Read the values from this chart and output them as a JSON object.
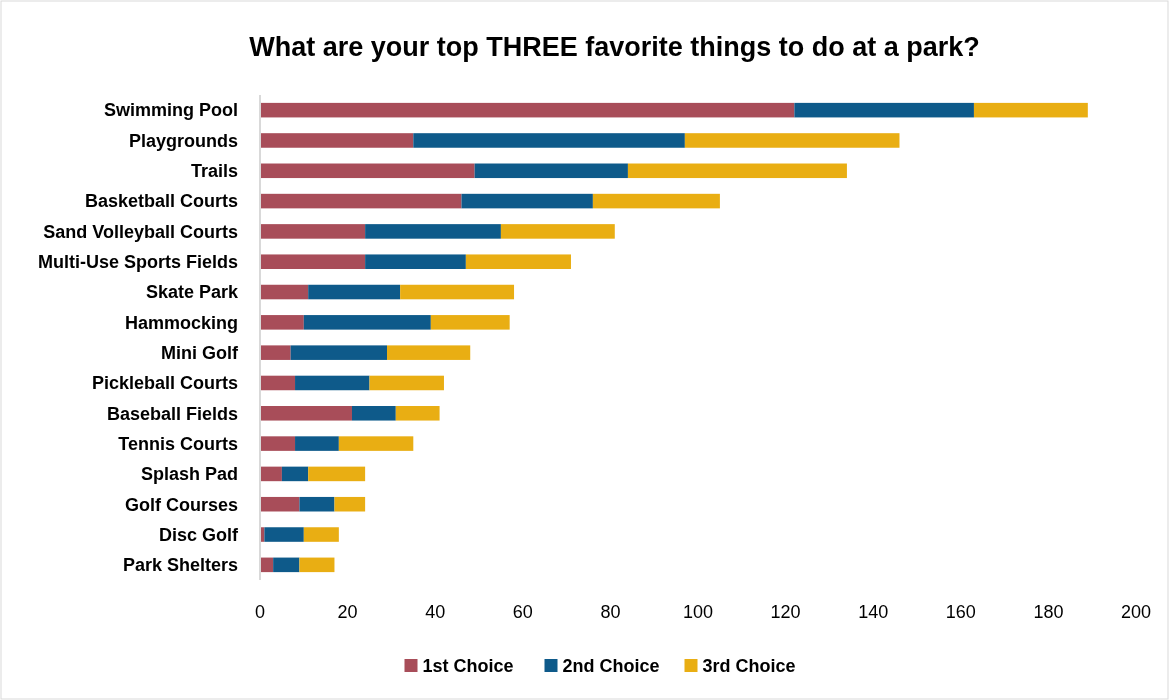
{
  "chart_data": {
    "type": "bar",
    "orientation": "horizontal",
    "stacked": true,
    "title": "What are your top THREE favorite things to do at a park?",
    "categories": [
      "Swimming Pool",
      "Playgrounds",
      "Trails",
      "Basketball Courts",
      "Sand Volleyball Courts",
      "Multi-Use Sports Fields",
      "Skate Park",
      "Hammocking",
      "Mini Golf",
      "Pickleball Courts",
      "Baseball Fields",
      "Tennis Courts",
      "Splash Pad",
      "Golf Courses",
      "Disc Golf",
      "Park Shelters"
    ],
    "series": [
      {
        "name": "1st Choice",
        "color": "#a84d59",
        "values": [
          122,
          35,
          49,
          46,
          24,
          24,
          11,
          10,
          7,
          8,
          21,
          8,
          5,
          9,
          1,
          3
        ]
      },
      {
        "name": "2nd Choice",
        "color": "#0e5a8a",
        "values": [
          41,
          62,
          35,
          30,
          31,
          23,
          21,
          29,
          22,
          17,
          10,
          10,
          6,
          8,
          9,
          6
        ]
      },
      {
        "name": "3rd Choice",
        "color": "#e9ae13",
        "values": [
          26,
          49,
          50,
          29,
          26,
          24,
          26,
          18,
          19,
          17,
          10,
          17,
          13,
          7,
          8,
          8
        ]
      }
    ],
    "xlim": [
      0,
      200
    ],
    "xticks": [
      0,
      20,
      40,
      60,
      80,
      100,
      120,
      140,
      160,
      180,
      200
    ],
    "grid": false,
    "legend": "bottom"
  }
}
